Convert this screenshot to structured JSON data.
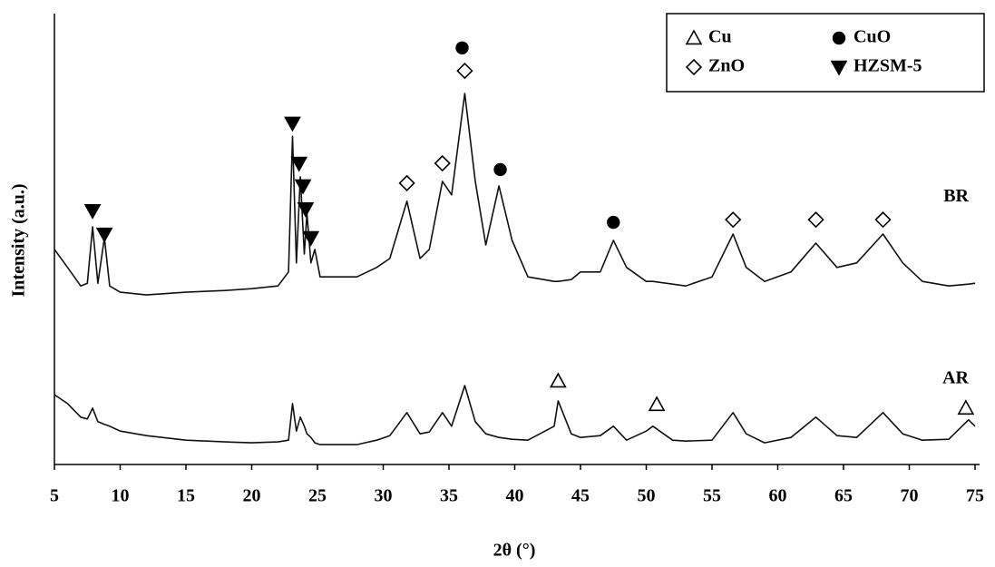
{
  "chart_data": {
    "type": "line",
    "x_label": "2θ (°)",
    "y_label": "Intensity (a.u.)",
    "xlim": [
      5,
      75
    ],
    "xticks": [
      5,
      10,
      15,
      20,
      25,
      30,
      35,
      40,
      45,
      50,
      55,
      60,
      65,
      70,
      75
    ],
    "ylim": [
      0,
      100
    ],
    "x": [
      5,
      6,
      7,
      7.5,
      7.9,
      8.3,
      8.8,
      9.2,
      10,
      12,
      15,
      18,
      20,
      22,
      22.8,
      23.1,
      23.4,
      23.7,
      24,
      24.2,
      24.5,
      24.8,
      25.2,
      26,
      28,
      29.5,
      30.5,
      31.8,
      32.8,
      33.5,
      34.5,
      35.2,
      36.2,
      37,
      37.8,
      38.8,
      39.8,
      41,
      43,
      43.3,
      44.3,
      45,
      46.5,
      47.5,
      48.5,
      50,
      50.5,
      52,
      53,
      55,
      56.6,
      57.6,
      59,
      61,
      62.9,
      64.5,
      66,
      68,
      69.5,
      71,
      73,
      74.5,
      75
    ],
    "series": [
      {
        "name": "BR",
        "color": "#111111",
        "values": [
          47.7,
          43.7,
          39.6,
          40.2,
          52.7,
          40.2,
          50.3,
          39.6,
          38.2,
          37.6,
          38.2,
          38.6,
          39.0,
          39.6,
          42.7,
          72.8,
          44.7,
          63.8,
          46.7,
          55.7,
          44.7,
          47.7,
          41.6,
          41.6,
          41.6,
          43.7,
          45.7,
          58.4,
          45.7,
          47.7,
          62.8,
          59.8,
          82.3,
          62.8,
          48.7,
          61.8,
          49.7,
          41.6,
          40.6,
          40.6,
          41.0,
          42.7,
          42.7,
          49.7,
          43.7,
          40.6,
          40.6,
          40.0,
          39.6,
          41.6,
          51.1,
          43.7,
          40.6,
          42.7,
          49.1,
          43.7,
          44.7,
          51.1,
          44.7,
          40.6,
          39.6,
          40.0,
          40.2
        ]
      },
      {
        "name": "AR",
        "color": "#111111",
        "values": [
          15.5,
          13.5,
          10.5,
          10.1,
          12.5,
          9.5,
          8.9,
          8.5,
          7.4,
          6.4,
          5.4,
          5.0,
          4.8,
          5.0,
          5.4,
          13.5,
          7.4,
          10.5,
          8.5,
          6.8,
          6.0,
          4.8,
          4.4,
          4.4,
          4.4,
          5.4,
          6.4,
          11.5,
          6.8,
          7.2,
          11.5,
          8.5,
          17.5,
          9.5,
          6.8,
          6.0,
          5.6,
          5.4,
          8.5,
          14.1,
          6.8,
          6.0,
          6.4,
          8.5,
          5.4,
          7.4,
          8.5,
          5.4,
          5.2,
          5.4,
          11.5,
          6.8,
          4.8,
          6.0,
          10.5,
          6.4,
          6.0,
          11.5,
          6.8,
          5.4,
          5.6,
          9.9,
          8.5
        ]
      }
    ],
    "phases": [
      {
        "name": "Cu",
        "marker": "triangle-open"
      },
      {
        "name": "CuO",
        "marker": "circle-filled"
      },
      {
        "name": "ZnO",
        "marker": "diamond-open"
      },
      {
        "name": "HZSM-5",
        "marker": "triangle-down-filled"
      }
    ],
    "peak_markers": [
      {
        "phase": 3,
        "x": 7.9,
        "y": 56.3
      },
      {
        "phase": 3,
        "x": 8.8,
        "y": 51.1
      },
      {
        "phase": 3,
        "x": 23.1,
        "y": 75.7
      },
      {
        "phase": 3,
        "x": 23.6,
        "y": 66.8
      },
      {
        "phase": 3,
        "x": 23.9,
        "y": 61.8
      },
      {
        "phase": 3,
        "x": 24.1,
        "y": 56.7
      },
      {
        "phase": 3,
        "x": 24.5,
        "y": 50.3
      },
      {
        "phase": 2,
        "x": 31.8,
        "y": 62.4
      },
      {
        "phase": 2,
        "x": 34.5,
        "y": 66.8
      },
      {
        "phase": 2,
        "x": 36.2,
        "y": 87.3
      },
      {
        "phase": 2,
        "x": 56.6,
        "y": 54.3
      },
      {
        "phase": 2,
        "x": 62.9,
        "y": 54.3
      },
      {
        "phase": 2,
        "x": 68,
        "y": 54.3
      },
      {
        "phase": 1,
        "x": 36.0,
        "y": 92.4
      },
      {
        "phase": 1,
        "x": 38.9,
        "y": 65.4
      },
      {
        "phase": 1,
        "x": 47.5,
        "y": 53.7
      },
      {
        "phase": 0,
        "x": 43.3,
        "y": 18.5
      },
      {
        "phase": 0,
        "x": 50.8,
        "y": 13.3
      },
      {
        "phase": 0,
        "x": 74.3,
        "y": 12.5
      }
    ]
  }
}
